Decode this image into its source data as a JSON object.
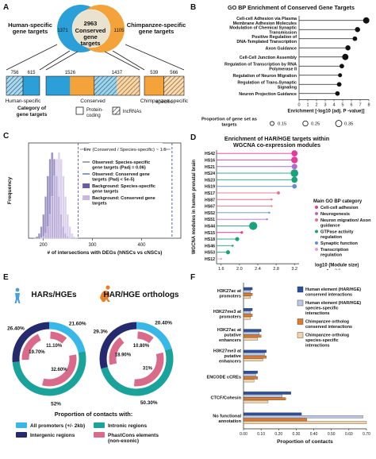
{
  "panels": {
    "A": {
      "letter": "A",
      "venn": {
        "left_label": "Human-specific gene targets",
        "right_label": "Chimpanzee-specific gene targets",
        "center_count": "2963",
        "center_text": "Conserved gene targets",
        "left_count": "1371",
        "right_count": "1105",
        "colors": {
          "left": "#2a9fd8",
          "right": "#f4a23a",
          "center": "#e9e2cf"
        }
      },
      "bars": [
        {
          "name": "Human-specific",
          "segments": [
            {
              "value": "756",
              "kind": "lncRNAs"
            },
            {
              "value": "615",
              "kind": "Protein-coding"
            }
          ]
        },
        {
          "name": "Conserved",
          "segments": [
            {
              "value": "1526",
              "kind": "Protein-coding"
            },
            {
              "value": "1437",
              "kind": "lncRNAs"
            }
          ]
        },
        {
          "name": "Chimpanzee-specific",
          "segments": [
            {
              "value": "539",
              "kind": "Protein-coding"
            },
            {
              "value": "566",
              "kind": "lncRNAs"
            }
          ]
        }
      ],
      "legend_title": "Category of gene targets",
      "legend_items": [
        "Protein-coding",
        "lncRNAs"
      ]
    },
    "B": {
      "letter": "B",
      "chart_data": {
        "type": "scatter",
        "title": "GO BP Enrichment of Conserved Gene Targets",
        "xlabel": "Enrichment [-log10 (adj. P -value)]",
        "xlim": [
          0,
          8
        ],
        "xticks": [
          "0",
          "1",
          "2",
          "3",
          "4",
          "5",
          "6",
          "7",
          "8"
        ],
        "categories": [
          "Cell-cell Adhesion via Plasma Membrane Adhesion Molecules",
          "Modulation of Chemical Synaptic Transmission",
          "Positive Regulation of DNA-Templated Transcription",
          "Axon Guidance",
          "Cell-Cell Junction Assembly",
          "Regulation of Transcription by RNA Polymerase II",
          "Regulation of Neuron Migration",
          "Regulation of Trans-Synaptic Signaling",
          "Neuron Projection Guidance"
        ],
        "values": [
          7.7,
          6.7,
          6.4,
          5.6,
          5.3,
          4.9,
          4.7,
          4.6,
          4.4
        ],
        "size_proportion": [
          0.35,
          0.25,
          0.2,
          0.25,
          0.35,
          0.2,
          0.15,
          0.2,
          0.2
        ],
        "size_legend_title": "Proportion of gene set as targets",
        "size_legend": [
          "0.15",
          "0.25",
          "0.35"
        ],
        "color": "#111111"
      }
    },
    "C": {
      "letter": "C",
      "chart_data": {
        "type": "histogram",
        "ylabel": "Frequency",
        "xlabel": "# of intersections with DEGs (hNSCs vs cNSCs)",
        "xlim": [
          170,
          480
        ],
        "xticks": [
          200,
          300,
          400
        ],
        "annotation": "Enr (Conserved / Species-specific) ~ 1.5",
        "series": [
          {
            "name": "Observed: Species-specific gene targets (Padj = 0.06)",
            "type": "line",
            "x": 271,
            "color": "#6a5aa8"
          },
          {
            "name": "Observed: Conserved gene targets (Padj < 5e-5)",
            "type": "line",
            "x": 462,
            "color": "#2b5fa8"
          },
          {
            "name": "Background: Species-specific gene targets",
            "type": "hist",
            "mean": 218,
            "sd": 11,
            "color": "#6a5aa8"
          },
          {
            "name": "Background: Conserved gene targets",
            "type": "hist",
            "mean": 232,
            "sd": 11,
            "color": "#c9b8e2"
          }
        ]
      }
    },
    "D": {
      "letter": "D",
      "chart_data": {
        "type": "scatter",
        "title": "Enrichment of HAR/HGE targets within WGCNA co-expression modules",
        "ylabel": "WGCNA modules in human prenatal brain",
        "xlabel": "Enrichment [-log10 (adj. P -value)]",
        "xlim": [
          1.5,
          3.3
        ],
        "xticks": [
          "1.6",
          "2.0",
          "2.4",
          "2.8",
          "3.2"
        ],
        "categories": [
          "HS42",
          "HS16",
          "HS21",
          "HS24",
          "HS23",
          "HS19",
          "HS17",
          "HS87",
          "HS67",
          "HS52",
          "HS51",
          "HS44",
          "HS15",
          "HS18",
          "HS46",
          "HS53",
          "HS12"
        ],
        "values": [
          3.2,
          3.2,
          3.2,
          3.2,
          3.2,
          3.2,
          2.85,
          2.7,
          2.7,
          2.65,
          2.6,
          2.3,
          2.05,
          1.95,
          1.85,
          1.75,
          1.6
        ],
        "group": [
          "Cell-cell adhesion",
          "Cell-cell adhesion",
          "Neurogenesis",
          "GTPase activity regulation",
          "GTPase activity regulation",
          "Synaptic function",
          "Neuron migration/ Axon guidance",
          "Neuron migration/ Axon guidance",
          "Neuron migration/ Axon guidance",
          "Synaptic function",
          "Neurogenesis",
          "GTPase activity regulation",
          "Cell-cell adhesion",
          "GTPase activity regulation",
          "GTPase activity regulation",
          "GTPase activity regulation",
          "Transcription regulation"
        ],
        "module_size": [
          2.6,
          2.7,
          2.5,
          2.9,
          2.6,
          2.3,
          2.0,
          1.7,
          1.6,
          1.5,
          1.7,
          3.0,
          1.9,
          2.2,
          1.8,
          2.2,
          1.7
        ],
        "legend_title": "Main GO BP category",
        "legend": [
          {
            "name": "Cell-cell adhesion",
            "color": "#e8389a"
          },
          {
            "name": "Neurogenesis",
            "color": "#b06ad8"
          },
          {
            "name": "Neuron migration/ Axon guidance",
            "color": "#f06c86"
          },
          {
            "name": "GTPase activity regulation",
            "color": "#1aa37a"
          },
          {
            "name": "Synaptic function",
            "color": "#6a8bd8"
          },
          {
            "name": "Transcription regulation",
            "color": "#e8a0c8"
          }
        ],
        "size_legend_title": "log10 (Module size)",
        "size_legend": [
          "2.0",
          "2.5",
          "3.0",
          "3.5"
        ]
      }
    },
    "E": {
      "letter": "E",
      "chart_data": [
        {
          "type": "pie",
          "title": "HARs/HGEs",
          "outer_ring": [
            {
              "name": "All promoters (+/- 2kb)",
              "value": 21.6,
              "label": "21.60%",
              "color": "#38b8e8"
            },
            {
              "name": "Intronic regions",
              "value": 52.0,
              "label": "52%",
              "color": "#1aa39a"
            },
            {
              "name": "Intergenic regions",
              "value": 26.4,
              "label": "26.40%",
              "color": "#252a6e"
            }
          ],
          "inner_ring": [
            {
              "name": "PhastCons elements (non-exonic)",
              "value": 11.1,
              "label": "11.10%"
            },
            {
              "name": "PhastCons elements (non-exonic)",
              "value": 32.6,
              "label": "32.60%"
            },
            {
              "name": "PhastCons elements (non-exonic)",
              "value": 19.7,
              "label": "19.70%"
            }
          ]
        },
        {
          "type": "pie",
          "title": "HAR/HGE orthologs",
          "outer_ring": [
            {
              "name": "All promoters (+/- 2kb)",
              "value": 20.4,
              "label": "20.40%",
              "color": "#38b8e8"
            },
            {
              "name": "Intronic regions",
              "value": 50.3,
              "label": "50.30%",
              "color": "#1aa39a"
            },
            {
              "name": "Intergenic regions",
              "value": 29.3,
              "label": "29.3%",
              "color": "#252a6e"
            }
          ],
          "inner_ring": [
            {
              "name": "PhastCons elements (non-exonic)",
              "value": 10.8,
              "label": "10.80%"
            },
            {
              "name": "PhastCons elements (non-exonic)",
              "value": 31.0,
              "label": "31%"
            },
            {
              "name": "PhastCons elements (non-exonic)",
              "value": 18.9,
              "label": "18.90%"
            }
          ]
        }
      ],
      "legend_title": "Proportion of contacts with:",
      "legend": [
        {
          "name": "All promoters (+/- 2kb)",
          "color": "#38b8e8"
        },
        {
          "name": "Intronic regions",
          "color": "#1aa39a"
        },
        {
          "name": "Intergenic regions",
          "color": "#252a6e"
        },
        {
          "name": "PhastCons elements (non-exonic)",
          "color": "#d96a8a"
        }
      ],
      "inner_color": "#d96a8a"
    },
    "F": {
      "letter": "F",
      "chart_data": {
        "type": "bar",
        "orientation": "horizontal",
        "xlabel": "Proportion of contacts",
        "xlim": [
          0,
          0.7
        ],
        "xticks": [
          "0.00",
          "0.10",
          "0.20",
          "0.30",
          "0.40",
          "0.50",
          "0.60",
          "0.70"
        ],
        "categories": [
          "H3K27ac at promoters",
          "H3K27me3 at promoters",
          "H3K27ac at putative enhancers",
          "H3K27me3 at putative enhancers",
          "ENCODE cCREs",
          "CTCF/Cohesin",
          "No functional annotation"
        ],
        "series": [
          {
            "name": "Human element (HAR/HGE) conserved interactions",
            "color": "#2b4f9e",
            "values": [
              0.05,
              0.05,
              0.1,
              0.13,
              0.08,
              0.27,
              0.33
            ]
          },
          {
            "name": "Human element (HAR/HGE) species-specific interactions",
            "color": "#b9c8e6",
            "values": [
              0.04,
              0.04,
              0.09,
              0.12,
              0.07,
              0.22,
              0.68
            ]
          },
          {
            "name": "Chimpanzee ortholog conserved interactions",
            "color": "#e07a2a",
            "values": [
              0.05,
              0.05,
              0.1,
              0.13,
              0.08,
              0.24,
              0.36
            ]
          },
          {
            "name": "Chimpanzee ortholog species-specific interactions",
            "color": "#f2d2a8",
            "values": [
              0.04,
              0.04,
              0.08,
              0.11,
              0.06,
              0.14,
              0.7
            ]
          }
        ]
      }
    }
  }
}
